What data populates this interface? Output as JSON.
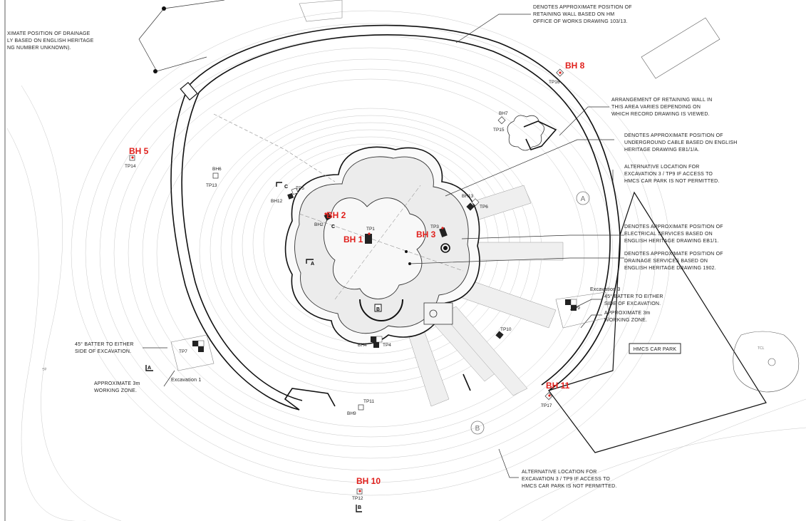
{
  "notes": {
    "drainage_left_1": "XIMATE POSITION OF DRAINAGE",
    "drainage_left_2": "LY BASED ON ENGLISH HERITAGE",
    "drainage_left_3": "NG NUMBER UNKNOWN).",
    "retaining_1": "DENOTES APPROXIMATE POSITION OF",
    "retaining_2": "RETAINING WALL BASED ON HM",
    "retaining_3": "OFFICE OF WORKS DRAWING 103/13.",
    "arrangement_1": "ARRANGEMENT OF RETAINING WALL IN",
    "arrangement_2": "THIS AREA VARIES DEPENDING ON",
    "arrangement_3": "WHICH RECORD DRAWING IS VIEWED.",
    "cable_1": "DENOTES APPROXIMATE POSITION OF",
    "cable_2": "UNDERGROUND CABLE BASED ON ENGLISH",
    "cable_3": "HERITAGE DRAWING EB1/1/A.",
    "alt_top_1": "ALTERNATIVE LOCATION FOR",
    "alt_top_2": "EXCAVATION 3 / TP9 IF ACCESS TO",
    "alt_top_3": "HMCS CAR PARK IS NOT PERMITTED.",
    "elec_1": "DENOTES APPROXIMATE POSITION OF",
    "elec_2": "ELECTRICAL SERVICES BASED ON",
    "elec_3": "ENGLISH HERITAGE DRAWING EB1/1.",
    "drain_1": "DENOTES APPROXIMATE POSITION OF",
    "drain_2": "DRAINAGE SERVICES BASED ON",
    "drain_3": "ENGLISH HERITAGE DRAWING 1902.",
    "excavation3": "Excavation 3",
    "batter_right_1": "45° BATTER TO EITHER",
    "batter_right_2": "SIDE OF EXCAVATION.",
    "zone_right_1": "APPROXIMATE 3m",
    "zone_right_2": "WORKING ZONE.",
    "batter_left_1": "45° BATTER TO EITHER",
    "batter_left_2": "SIDE OF EXCAVATION.",
    "zone_left_1": "APPROXIMATE 3m",
    "zone_left_2": "WORKING ZONE.",
    "excavation1": "Excavation 1",
    "car_park": "HMCS CAR PARK",
    "alt_bottom_1": "ALTERNATIVE LOCATION FOR",
    "alt_bottom_2": "EXCAVATION 3 / TP9 IF ACCESS TO",
    "alt_bottom_3": "HMCS CAR PARK IS NOT PERMITTED."
  },
  "boreholes": {
    "bh8": "BH 8",
    "bh5": "BH 5",
    "bh2": "BH 2",
    "bh1": "BH 1",
    "bh3": "BH 3",
    "bh11": "BH 11",
    "bh10": "BH 10"
  },
  "points": {
    "tp16": "TP16",
    "bh7": "BH7",
    "tp15": "TP15",
    "tp14": "TP14",
    "bh6": "BH6",
    "tp13": "TP13",
    "tp5": "TP5",
    "bh12": "BH12",
    "bh2s": "BH2",
    "tp1": "TP1",
    "tp3": "TP3",
    "bh13": "BH13",
    "tp6": "TP6",
    "tp9": "TP9",
    "tp10": "TP10",
    "tp4": "TP4",
    "bh4": "BH4",
    "tp7": "TP7",
    "tp11": "TP11",
    "bh9": "BH9",
    "tp17": "TP17",
    "tp12": "TP12"
  },
  "sections": {
    "a": "A",
    "b": "B",
    "c": "C"
  },
  "zones": {
    "a": "A",
    "b": "B"
  },
  "misc": {
    "sp": "Sp",
    "tcl": "TCL"
  }
}
